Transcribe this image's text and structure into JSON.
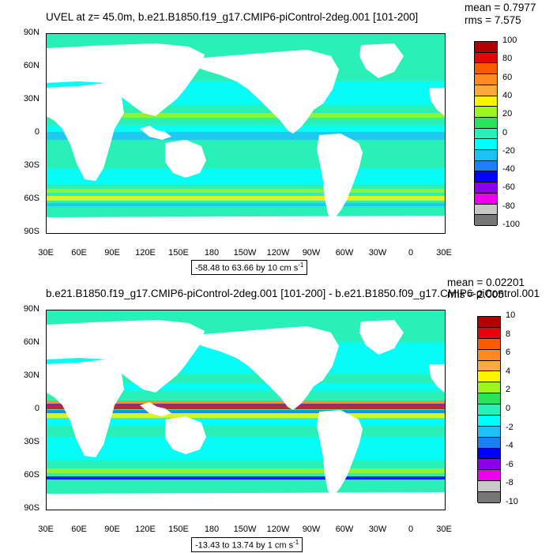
{
  "chart_data": [
    {
      "type": "heatmap",
      "title": "UVEL at z=  45.0m, b.e21.B1850.f19_g17.CMIP6-piControl-2deg.001 [101-200]",
      "mean_text": "mean = 0.7977",
      "rms_text": "rms = 7.575",
      "range_text": "-58.48 to 63.66 by 10 cm s",
      "unit_superscript": "-1",
      "ylabels": [
        "90N",
        "60N",
        "30N",
        "0",
        "30S",
        "60S",
        "90S"
      ],
      "xlabels": [
        "30E",
        "60E",
        "90E",
        "120E",
        "150E",
        "180",
        "150W",
        "120W",
        "90W",
        "60W",
        "30W",
        "0",
        "30E"
      ],
      "colorbar": {
        "labels": [
          "100",
          "80",
          "60",
          "40",
          "20",
          "0",
          "-20",
          "-40",
          "-60",
          "-80",
          "-100"
        ],
        "colors": [
          "#b30000",
          "#e8000b",
          "#fb5a00",
          "#fd8b1f",
          "#fcaa3c",
          "#fdf400",
          "#9cf51c",
          "#29e35a",
          "#29f0b8",
          "#00ffff",
          "#1fbff7",
          "#1b7ff7",
          "#0000ff",
          "#8a00ee",
          "#ee00ee",
          "#c8c8c8",
          "#777777"
        ]
      }
    },
    {
      "type": "heatmap",
      "title": "b.e21.B1850.f19_g17.CMIP6-piControl-2deg.001 [101-200] - b.e21.B1850.f09_g17.CMIP6-piControl.001",
      "mean_text": "mean = 0.02201",
      "rms_text": "rms = 2.005",
      "range_text": "-13.43 to 13.74 by 1 cm s",
      "unit_superscript": "-1",
      "ylabels": [
        "90N",
        "60N",
        "30N",
        "0",
        "30S",
        "60S",
        "90S"
      ],
      "xlabels": [
        "30E",
        "60E",
        "90E",
        "120E",
        "150E",
        "180",
        "150W",
        "120W",
        "90W",
        "60W",
        "30W",
        "0",
        "30E"
      ],
      "colorbar": {
        "labels": [
          "10",
          "8",
          "6",
          "4",
          "2",
          "0",
          "-2",
          "-4",
          "-6",
          "-8",
          "-10"
        ],
        "colors": [
          "#b30000",
          "#e8000b",
          "#fb5a00",
          "#fd8b1f",
          "#fcaa3c",
          "#fdf400",
          "#9cf51c",
          "#29e35a",
          "#29f0b8",
          "#00ffff",
          "#1fbff7",
          "#1b7ff7",
          "#0000ff",
          "#8a00ee",
          "#ee00ee",
          "#c8c8c8",
          "#777777"
        ]
      }
    }
  ]
}
